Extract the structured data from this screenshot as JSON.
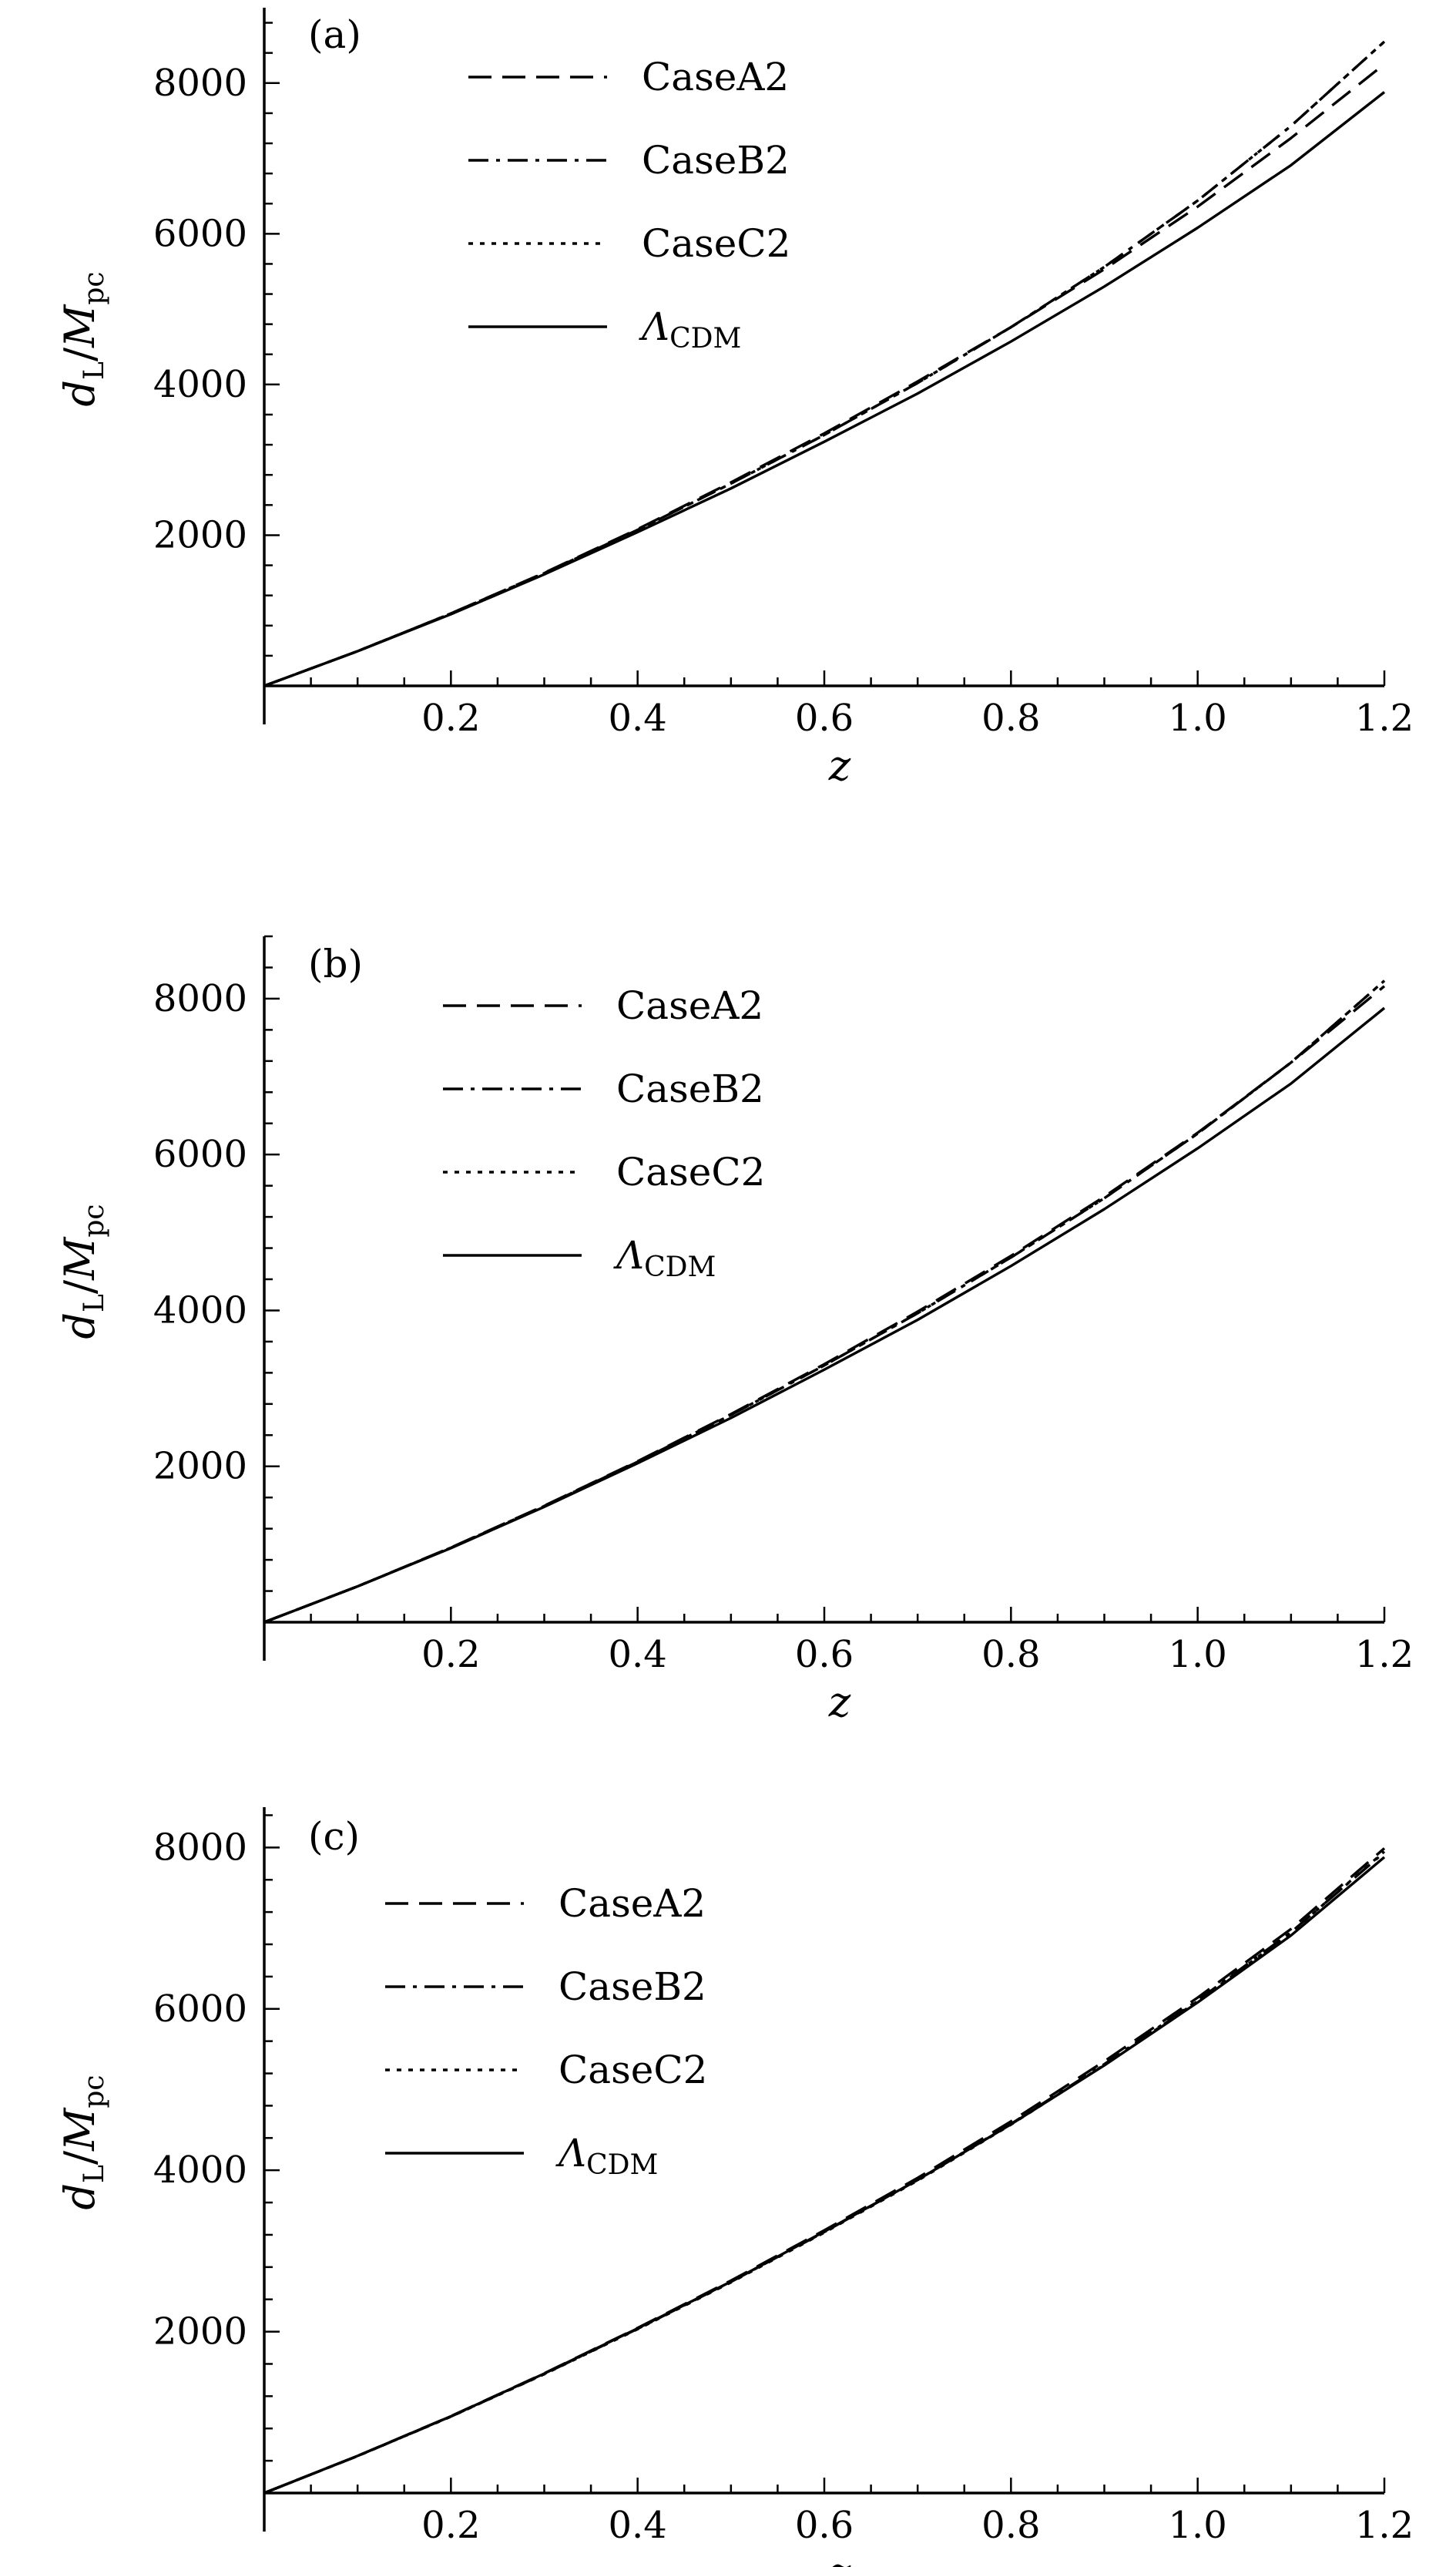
{
  "chart_data": [
    {
      "type": "line",
      "panel_label": "(a)",
      "xlabel": "z",
      "ylabel": "d_L/M_pc",
      "xlim": [
        0,
        1.2
      ],
      "ylim": [
        0,
        9000
      ],
      "xticks": [
        0.2,
        0.4,
        0.6,
        0.8,
        1.0,
        1.2
      ],
      "xtick_labels": [
        "0.2",
        "0.4",
        "0.6",
        "0.8",
        "1.0",
        "1.2"
      ],
      "yticks": [
        2000,
        4000,
        6000,
        8000
      ],
      "ytick_labels": [
        "2000",
        "4000",
        "6000",
        "8000"
      ],
      "grid": false,
      "legend_position": "top-left",
      "x": [
        0,
        0.1,
        0.2,
        0.3,
        0.4,
        0.5,
        0.6,
        0.7,
        0.8,
        0.9,
        1.0,
        1.1,
        1.2
      ],
      "series": [
        {
          "name": "CaseA2",
          "style": "dashed",
          "values": [
            0,
            460,
            960,
            1500,
            2080,
            2700,
            3350,
            4040,
            4760,
            5530,
            6360,
            7270,
            8250
          ]
        },
        {
          "name": "CaseB2",
          "style": "dash-dot",
          "values": [
            0,
            460,
            960,
            1495,
            2070,
            2685,
            3330,
            4020,
            4760,
            5560,
            6440,
            7430,
            8550
          ]
        },
        {
          "name": "CaseC2",
          "style": "dotted",
          "values": [
            0,
            460,
            960,
            1495,
            2070,
            2685,
            3330,
            4020,
            4760,
            5560,
            6440,
            7430,
            8550
          ]
        },
        {
          "name": "ΛCDM",
          "style": "solid",
          "values": [
            0,
            460,
            950,
            1480,
            2040,
            2620,
            3240,
            3880,
            4570,
            5300,
            6080,
            6910,
            7880
          ]
        }
      ]
    },
    {
      "type": "line",
      "panel_label": "(b)",
      "xlabel": "z",
      "ylabel": "d_L/M_pc",
      "xlim": [
        0,
        1.2
      ],
      "ylim": [
        0,
        8800
      ],
      "xticks": [
        0.2,
        0.4,
        0.6,
        0.8,
        1.0,
        1.2
      ],
      "xtick_labels": [
        "0.2",
        "0.4",
        "0.6",
        "0.8",
        "1.0",
        "1.2"
      ],
      "yticks": [
        2000,
        4000,
        6000,
        8000
      ],
      "ytick_labels": [
        "2000",
        "4000",
        "6000",
        "8000"
      ],
      "grid": false,
      "legend_position": "top-left",
      "x": [
        0,
        0.1,
        0.2,
        0.3,
        0.4,
        0.5,
        0.6,
        0.7,
        0.8,
        0.9,
        1.0,
        1.1,
        1.2
      ],
      "series": [
        {
          "name": "CaseA2",
          "style": "dashed",
          "values": [
            0,
            460,
            958,
            1495,
            2065,
            2670,
            3310,
            3985,
            4700,
            5460,
            6280,
            7180,
            8160
          ]
        },
        {
          "name": "CaseB2",
          "style": "dash-dot",
          "values": [
            0,
            460,
            955,
            1490,
            2058,
            2660,
            3295,
            3965,
            4680,
            5440,
            6270,
            7180,
            8230
          ]
        },
        {
          "name": "CaseC2",
          "style": "dotted",
          "values": [
            0,
            460,
            955,
            1490,
            2058,
            2660,
            3295,
            3965,
            4680,
            5440,
            6270,
            7180,
            8230
          ]
        },
        {
          "name": "ΛCDM",
          "style": "solid",
          "values": [
            0,
            460,
            950,
            1480,
            2040,
            2620,
            3240,
            3880,
            4570,
            5300,
            6080,
            6910,
            7880
          ]
        }
      ]
    },
    {
      "type": "line",
      "panel_label": "(c)",
      "xlabel": "z",
      "ylabel": "d_L/M_pc",
      "xlim": [
        0,
        1.2
      ],
      "ylim": [
        0,
        8500
      ],
      "xticks": [
        0.2,
        0.4,
        0.6,
        0.8,
        1.0,
        1.2
      ],
      "xtick_labels": [
        "0.2",
        "0.4",
        "0.6",
        "0.8",
        "1.0",
        "1.2"
      ],
      "yticks": [
        2000,
        4000,
        6000,
        8000
      ],
      "ytick_labels": [
        "2000",
        "4000",
        "6000",
        "8000"
      ],
      "grid": false,
      "legend_position": "top-left",
      "x": [
        0,
        0.1,
        0.2,
        0.3,
        0.4,
        0.5,
        0.6,
        0.7,
        0.8,
        0.9,
        1.0,
        1.1,
        1.2
      ],
      "series": [
        {
          "name": "CaseA2",
          "style": "dashed",
          "values": [
            0,
            460,
            952,
            1483,
            2046,
            2632,
            3256,
            3905,
            4605,
            5350,
            6140,
            6990,
            7990
          ]
        },
        {
          "name": "CaseB2",
          "style": "dash-dot",
          "values": [
            0,
            458,
            948,
            1476,
            2035,
            2617,
            3235,
            3880,
            4575,
            5315,
            6105,
            6950,
            7940
          ]
        },
        {
          "name": "CaseC2",
          "style": "dotted",
          "values": [
            0,
            458,
            946,
            1473,
            2030,
            2610,
            3228,
            3872,
            4565,
            5305,
            6095,
            6945,
            7950
          ]
        },
        {
          "name": "ΛCDM",
          "style": "solid",
          "values": [
            0,
            460,
            950,
            1480,
            2040,
            2620,
            3240,
            3880,
            4570,
            5300,
            6080,
            6910,
            7880
          ]
        }
      ]
    }
  ]
}
